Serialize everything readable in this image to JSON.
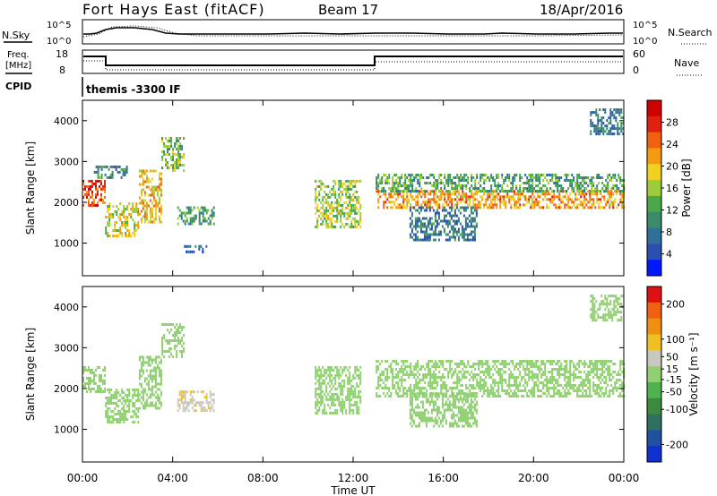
{
  "header": {
    "station": "Fort Hays East (fitACF)",
    "beam": "Beam 17",
    "date": "18/Apr/2016"
  },
  "panels": {
    "nsky_label": "N.Sky",
    "nsearch_label": "N.Search",
    "freq_label_1": "Freq.",
    "freq_label_2": "[MHz]",
    "nave_label": "Nave",
    "cpid_label": "CPID",
    "cpid_value": "themis -3300 IF",
    "noise_left_ticks": [
      "10^5",
      "10^0"
    ],
    "noise_right_ticks": [
      "10^5",
      "10^0"
    ],
    "freq_ticks": [
      "18",
      "8"
    ],
    "nave_ticks": [
      "60",
      "0"
    ]
  },
  "colors": {
    "power_scale": [
      "#0018ff",
      "#2a4fb0",
      "#2f6f9a",
      "#3b8a6a",
      "#4aa84a",
      "#9ccc3a",
      "#f0d020",
      "#f59a10",
      "#f06010",
      "#e02010",
      "#d00000"
    ],
    "velocity_scale": [
      "#1030d0",
      "#2050a0",
      "#2f7060",
      "#3c8a40",
      "#4fb24f",
      "#90d070",
      "#c8c8c0",
      "#f0c020",
      "#f09010",
      "#f06010",
      "#e01010"
    ]
  },
  "chart_data": [
    {
      "type": "heatmap",
      "name_key": "power",
      "ylabel": "Slant Range [km]",
      "ylim": [
        200,
        4500
      ],
      "yticks": [
        1000,
        2000,
        3000,
        4000
      ],
      "xlim": [
        0,
        24
      ],
      "colorbar": {
        "label": "Power [dB]",
        "ticks": [
          4,
          8,
          12,
          16,
          20,
          24,
          28
        ],
        "range": [
          0,
          32
        ]
      },
      "echoes": [
        {
          "x0": 0.0,
          "x1": 1.0,
          "y0": 1900,
          "y1": 2550,
          "v": 26
        },
        {
          "x0": 1.0,
          "x1": 2.5,
          "y0": 1200,
          "y1": 2000,
          "v": 18
        },
        {
          "x0": 2.5,
          "x1": 3.5,
          "y0": 1500,
          "y1": 2800,
          "v": 20
        },
        {
          "x0": 3.5,
          "x1": 4.5,
          "y0": 2800,
          "y1": 3600,
          "v": 14
        },
        {
          "x0": 0.5,
          "x1": 2.0,
          "y0": 2600,
          "y1": 2900,
          "v": 10
        },
        {
          "x0": 4.2,
          "x1": 5.8,
          "y0": 1500,
          "y1": 1900,
          "v": 12
        },
        {
          "x0": 4.5,
          "x1": 5.5,
          "y0": 800,
          "y1": 950,
          "v": 6
        },
        {
          "x0": 10.3,
          "x1": 12.3,
          "y0": 1400,
          "y1": 2550,
          "v": 16
        },
        {
          "x0": 13.0,
          "x1": 24.0,
          "y0": 1900,
          "y1": 2300,
          "v": 22
        },
        {
          "x0": 13.0,
          "x1": 24.0,
          "y0": 2300,
          "y1": 2700,
          "v": 12
        },
        {
          "x0": 14.5,
          "x1": 17.5,
          "y0": 1100,
          "y1": 1900,
          "v": 8
        },
        {
          "x0": 22.5,
          "x1": 24.0,
          "y0": 3700,
          "y1": 4300,
          "v": 8
        }
      ]
    },
    {
      "type": "heatmap",
      "name_key": "velocity",
      "ylabel": "Slant Range [km]",
      "ylim": [
        200,
        4500
      ],
      "yticks": [
        1000,
        2000,
        3000,
        4000
      ],
      "xlim": [
        0,
        24
      ],
      "xticks": [
        "00:00",
        "04:00",
        "08:00",
        "12:00",
        "16:00",
        "20:00",
        "00:00"
      ],
      "xlabel": "Time UT",
      "colorbar": {
        "label": "Velocity [m s⁻¹]",
        "ticks": [
          200,
          100,
          50,
          15,
          -15,
          -50,
          -100,
          -200
        ],
        "range": [
          -250,
          250
        ]
      },
      "echoes": [
        {
          "x0": 0.0,
          "x1": 1.0,
          "y0": 1900,
          "y1": 2550,
          "v": 0
        },
        {
          "x0": 1.0,
          "x1": 2.5,
          "y0": 1200,
          "y1": 2000,
          "v": 0
        },
        {
          "x0": 2.5,
          "x1": 3.5,
          "y0": 1500,
          "y1": 2800,
          "v": 0
        },
        {
          "x0": 3.5,
          "x1": 4.5,
          "y0": 2800,
          "y1": 3600,
          "v": 0
        },
        {
          "x0": 4.2,
          "x1": 5.8,
          "y0": 1450,
          "y1": 1950,
          "v": 60
        },
        {
          "x0": 10.3,
          "x1": 12.3,
          "y0": 1400,
          "y1": 2550,
          "v": 0
        },
        {
          "x0": 13.0,
          "x1": 24.0,
          "y0": 1800,
          "y1": 2700,
          "v": 0
        },
        {
          "x0": 14.5,
          "x1": 17.5,
          "y0": 1100,
          "y1": 1900,
          "v": 0
        },
        {
          "x0": 22.5,
          "x1": 24.0,
          "y0": 3700,
          "y1": 4300,
          "v": 0
        }
      ]
    }
  ]
}
